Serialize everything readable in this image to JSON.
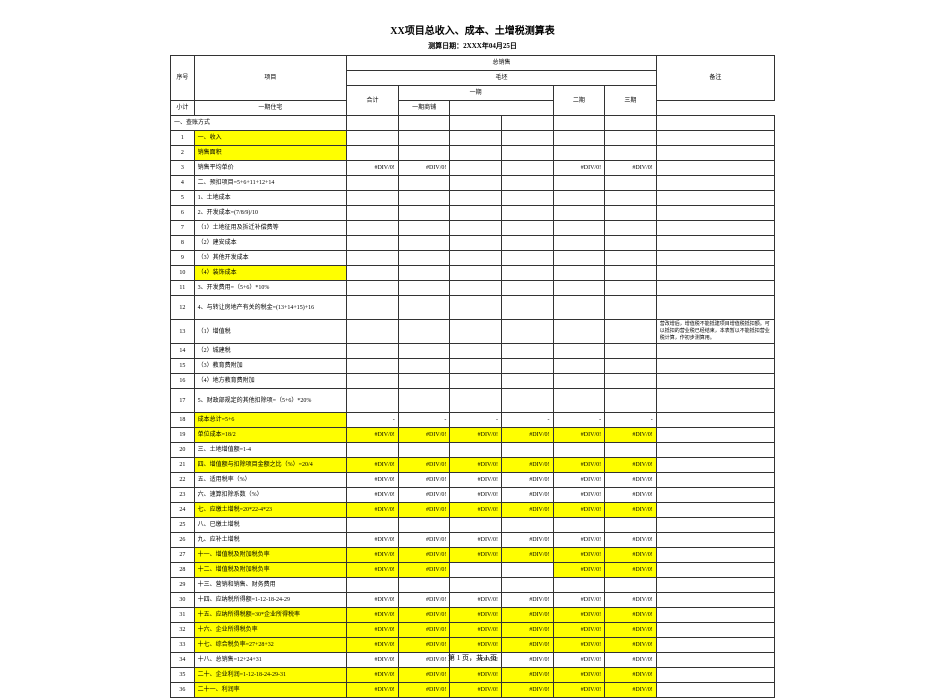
{
  "title": "XX项目总收入、成本、土增税测算表",
  "subtitle": "测算日期：2XXX年04月25日",
  "header": {
    "seq": "序号",
    "item": "项目",
    "group_top": "总销售",
    "group_sub": "毛坯",
    "heji": "合计",
    "xiaoji": "小计",
    "yiqi_zz": "一期住宅",
    "yiqi_sp": "一期商铺",
    "erqi": "二期",
    "sanqi": "三期",
    "remark": "备注"
  },
  "section1": "一、查账方式",
  "rows": [
    {
      "n": "1",
      "label": "一、收入",
      "hl": true
    },
    {
      "n": "2",
      "label": "销售面积",
      "hl": true
    },
    {
      "n": "3",
      "label": "销售平均单价",
      "v": {
        "heji": "#DIV/0!",
        "xiaoji": "#DIV/0!",
        "erqi": "#DIV/0!",
        "sanqi": "#DIV/0!"
      }
    },
    {
      "n": "4",
      "label": "二、预扣项目=5+6+11+12+14"
    },
    {
      "n": "5",
      "label": "1、土地成本"
    },
    {
      "n": "6",
      "label": "2、开发成本=(7/8/9)/10"
    },
    {
      "n": "7",
      "label": "（1）土地征用及拆迁补偿费等"
    },
    {
      "n": "8",
      "label": "（2）建安成本"
    },
    {
      "n": "9",
      "label": "（3）其他开发成本"
    },
    {
      "n": "10",
      "label": "（4）装饰成本",
      "hl": true
    },
    {
      "n": "11",
      "label": "3、开发费用=（5+6）*10%"
    },
    {
      "n": "12",
      "label": "4、与转让房地产有关的税金=(13+14+15)+16",
      "tall": true
    },
    {
      "n": "13",
      "label": "（1）增值税",
      "remark": "营改增后，增值税不能抵建项目增值税抵扣额。可以抵扣的营业税已经结束，本表暂以不能抵扣营业税计算，作初步测算用。",
      "tall": true
    },
    {
      "n": "14",
      "label": "（2）城建税"
    },
    {
      "n": "15",
      "label": "（3）教育费附加"
    },
    {
      "n": "16",
      "label": "（4）地方教育费附加"
    },
    {
      "n": "17",
      "label": "5、财政部规定的其他扣除项=（5+6）*20%",
      "tall": true
    },
    {
      "n": "18",
      "label": "成本总计=5+6",
      "hl": true,
      "dash": true
    },
    {
      "n": "19",
      "label": "单位成本=18/2",
      "hl": true,
      "v": {
        "heji": "#DIV/0!",
        "xiaoji": "#DIV/0!",
        "zz": "#DIV/0!",
        "sp": "#DIV/0!",
        "erqi": "#DIV/0!",
        "sanqi": "#DIV/0!"
      }
    },
    {
      "n": "20",
      "label": "三、土地增值额=1-4"
    },
    {
      "n": "21",
      "label": "四、增值额与扣除项目金额之比（%）=20/4",
      "hl": true,
      "v": {
        "heji": "#DIV/0!",
        "xiaoji": "#DIV/0!",
        "zz": "#DIV/0!",
        "sp": "#DIV/0!",
        "erqi": "#DIV/0!",
        "sanqi": "#DIV/0!"
      }
    },
    {
      "n": "22",
      "label": "五、适用税率（%）",
      "v": {
        "heji": "#DIV/0!",
        "xiaoji": "#DIV/0!",
        "zz": "#DIV/0!",
        "sp": "#DIV/0!",
        "erqi": "#DIV/0!",
        "sanqi": "#DIV/0!"
      }
    },
    {
      "n": "23",
      "label": "六、速算扣除系数（%）",
      "v": {
        "heji": "#DIV/0!",
        "xiaoji": "#DIV/0!",
        "zz": "#DIV/0!",
        "sp": "#DIV/0!",
        "erqi": "#DIV/0!",
        "sanqi": "#DIV/0!"
      }
    },
    {
      "n": "24",
      "label": "七、应缴土增税=20*22-4*23",
      "hl": true,
      "v": {
        "heji": "#DIV/0!",
        "xiaoji": "#DIV/0!",
        "zz": "#DIV/0!",
        "sp": "#DIV/0!",
        "erqi": "#DIV/0!",
        "sanqi": "#DIV/0!"
      }
    },
    {
      "n": "25",
      "label": "八、已缴土增税"
    },
    {
      "n": "26",
      "label": "九、应补土增税",
      "v": {
        "heji": "#DIV/0!",
        "xiaoji": "#DIV/0!",
        "zz": "#DIV/0!",
        "sp": "#DIV/0!",
        "erqi": "#DIV/0!",
        "sanqi": "#DIV/0!"
      }
    },
    {
      "n": "27",
      "label": "十一、增值税及附加税负率",
      "hl": true,
      "v": {
        "heji": "#DIV/0!",
        "xiaoji": "#DIV/0!",
        "zz": "#DIV/0!",
        "sp": "#DIV/0!",
        "erqi": "#DIV/0!",
        "sanqi": "#DIV/0!"
      }
    },
    {
      "n": "28",
      "label": "十二、增值税及附加税负率",
      "hl": true,
      "v": {
        "heji": "#DIV/0!",
        "xiaoji": "#DIV/0!",
        "erqi": "#DIV/0!",
        "sanqi": "#DIV/0!"
      }
    },
    {
      "n": "29",
      "label": "十三、营销和销售、财务费用"
    },
    {
      "n": "30",
      "label": "十四、应纳税所得额=1-12-18-24-29",
      "v": {
        "heji": "#DIV/0!",
        "xiaoji": "#DIV/0!",
        "zz": "#DIV/0!",
        "sp": "#DIV/0!",
        "erqi": "#DIV/0!",
        "sanqi": "#DIV/0!"
      }
    },
    {
      "n": "31",
      "label": "十五、应纳所得税额=30*企业所得税率",
      "hl": true,
      "v": {
        "heji": "#DIV/0!",
        "xiaoji": "#DIV/0!",
        "zz": "#DIV/0!",
        "sp": "#DIV/0!",
        "erqi": "#DIV/0!",
        "sanqi": "#DIV/0!"
      }
    },
    {
      "n": "32",
      "label": "十六、企业所得税负率",
      "hl": true,
      "v": {
        "heji": "#DIV/0!",
        "xiaoji": "#DIV/0!",
        "zz": "#DIV/0!",
        "sp": "#DIV/0!",
        "erqi": "#DIV/0!",
        "sanqi": "#DIV/0!"
      }
    },
    {
      "n": "33",
      "label": "十七、综合税负率=27+28+32",
      "hl": true,
      "v": {
        "heji": "#DIV/0!",
        "xiaoji": "#DIV/0!",
        "zz": "#DIV/0!",
        "sp": "#DIV/0!",
        "erqi": "#DIV/0!",
        "sanqi": "#DIV/0!"
      }
    },
    {
      "n": "34",
      "label": "十八、总销售=12+24+31",
      "v": {
        "heji": "#DIV/0!",
        "xiaoji": "#DIV/0!",
        "zz": "#DIV/0!",
        "sp": "#DIV/0!",
        "erqi": "#DIV/0!",
        "sanqi": "#DIV/0!"
      }
    },
    {
      "n": "35",
      "label": "二十、企业利润=1-12-18-24-29-31",
      "hl": true,
      "v": {
        "heji": "#DIV/0!",
        "xiaoji": "#DIV/0!",
        "zz": "#DIV/0!",
        "sp": "#DIV/0!",
        "erqi": "#DIV/0!",
        "sanqi": "#DIV/0!"
      }
    },
    {
      "n": "36",
      "label": "二十一、利润率",
      "hl": true,
      "v": {
        "heji": "#DIV/0!",
        "xiaoji": "#DIV/0!",
        "zz": "#DIV/0!",
        "sp": "#DIV/0!",
        "erqi": "#DIV/0!",
        "sanqi": "#DIV/0!"
      }
    }
  ],
  "footer": "第 1 页，共 1 页"
}
